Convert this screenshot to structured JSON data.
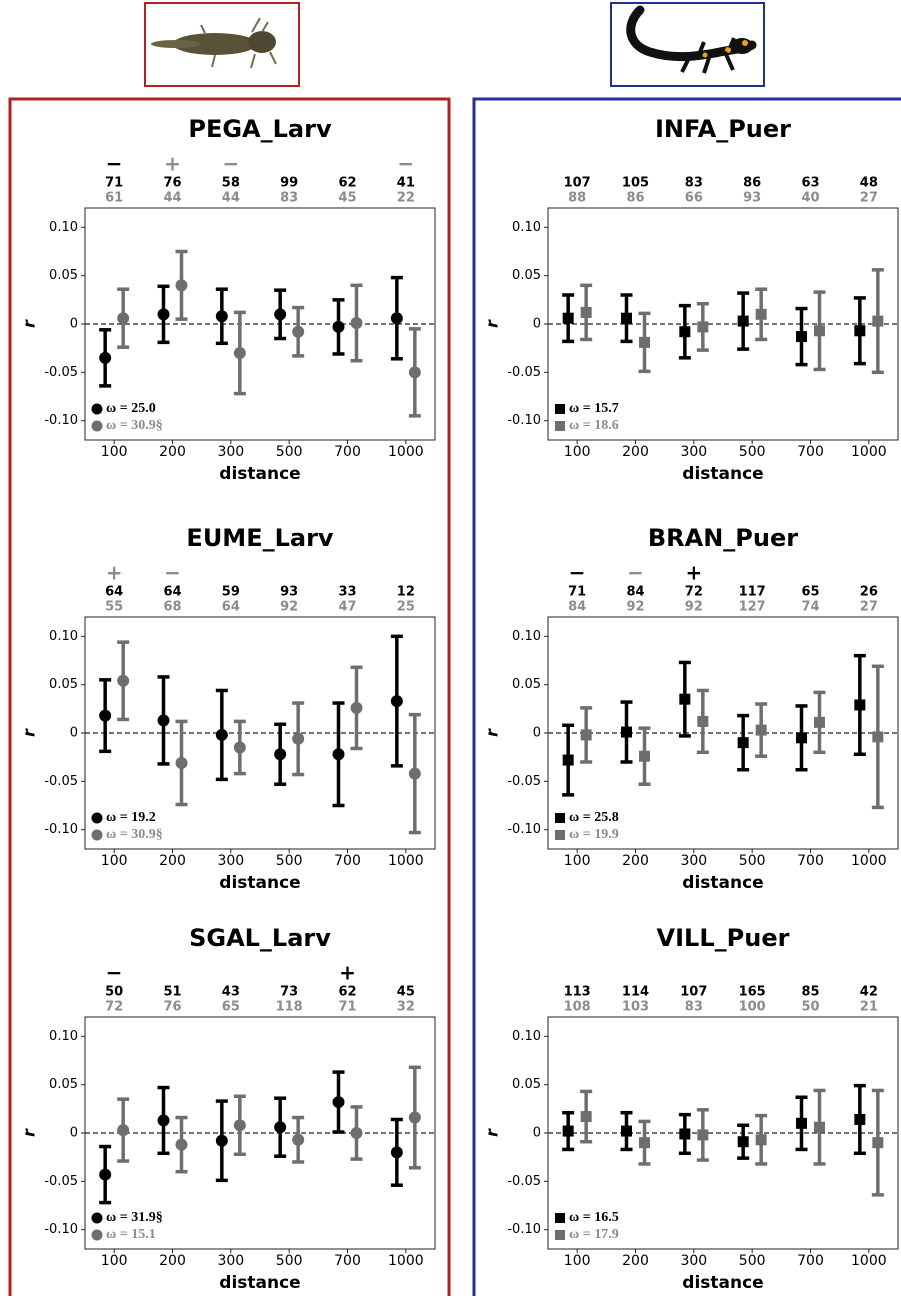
{
  "chart_data": [
    {
      "type": "errorbar",
      "title": "PEGA_Larv",
      "xlabel": "distance",
      "ylabel": "r",
      "categories": [
        "100",
        "200",
        "300",
        "500",
        "700",
        "1000"
      ],
      "ylim": [
        -0.12,
        0.12
      ],
      "yticks": [
        {
          "value": 0.1,
          "label": "0.10"
        },
        0.05,
        0,
        -0.05,
        {
          "value": -0.1,
          "label": "-0.10"
        }
      ],
      "series": [
        {
          "name": "ω = 25.0",
          "color": "#000000",
          "marker": "circle",
          "values": [
            -0.035,
            0.01,
            0.008,
            0.01,
            -0.003,
            0.006
          ],
          "errors": [
            0.029,
            0.029,
            0.028,
            0.025,
            0.028,
            0.042
          ],
          "n": [
            71,
            76,
            58,
            99,
            62,
            41
          ],
          "signs": [
            "−",
            null,
            null,
            null,
            null,
            null
          ]
        },
        {
          "name": "ω = 30.9§",
          "color": "#6e6e6e",
          "marker": "circle",
          "values": [
            0.006,
            0.04,
            -0.03,
            -0.008,
            0.001,
            -0.05
          ],
          "errors": [
            0.03,
            0.035,
            0.042,
            0.025,
            0.039,
            0.045
          ],
          "n": [
            61,
            44,
            44,
            83,
            45,
            22
          ],
          "signs": [
            null,
            "+",
            "−",
            null,
            null,
            "−"
          ]
        }
      ]
    },
    {
      "type": "errorbar",
      "title": "INFA_Puer",
      "xlabel": "distance",
      "ylabel": "r",
      "categories": [
        "100",
        "200",
        "300",
        "500",
        "700",
        "1000"
      ],
      "ylim": [
        -0.12,
        0.12
      ],
      "yticks": [
        {
          "value": 0.1,
          "label": "0.10"
        },
        0.05,
        0,
        -0.05,
        {
          "value": -0.1,
          "label": "-0.10"
        }
      ],
      "series": [
        {
          "name": "ω = 15.7",
          "color": "#000000",
          "marker": "square",
          "values": [
            0.006,
            0.006,
            -0.008,
            0.003,
            -0.013,
            -0.007
          ],
          "errors": [
            0.024,
            0.024,
            0.027,
            0.029,
            0.029,
            0.034
          ],
          "n": [
            107,
            105,
            83,
            86,
            63,
            48
          ],
          "signs": [
            null,
            null,
            null,
            null,
            null,
            null
          ]
        },
        {
          "name": "ω = 18.6",
          "color": "#6e6e6e",
          "marker": "square",
          "values": [
            0.012,
            -0.019,
            -0.003,
            0.01,
            -0.007,
            0.003
          ],
          "errors": [
            0.028,
            0.03,
            0.024,
            0.026,
            0.04,
            0.053
          ],
          "n": [
            88,
            86,
            66,
            93,
            40,
            27
          ],
          "signs": [
            null,
            null,
            null,
            null,
            null,
            null
          ]
        }
      ]
    },
    {
      "type": "errorbar",
      "title": "EUME_Larv",
      "xlabel": "distance",
      "ylabel": "r",
      "categories": [
        "100",
        "200",
        "300",
        "500",
        "700",
        "1000"
      ],
      "ylim": [
        -0.12,
        0.12
      ],
      "yticks": [
        {
          "value": 0.1,
          "label": "0.10"
        },
        0.05,
        0,
        -0.05,
        {
          "value": -0.1,
          "label": "-0.10"
        }
      ],
      "series": [
        {
          "name": "ω = 19.2",
          "color": "#000000",
          "marker": "circle",
          "values": [
            0.018,
            0.013,
            -0.002,
            -0.022,
            -0.022,
            0.033
          ],
          "errors": [
            0.037,
            0.045,
            0.046,
            0.031,
            0.053,
            0.067
          ],
          "n": [
            64,
            64,
            59,
            93,
            33,
            12
          ],
          "signs": [
            null,
            null,
            null,
            null,
            null,
            null
          ]
        },
        {
          "name": "ω = 30.9§",
          "color": "#6e6e6e",
          "marker": "circle",
          "values": [
            0.054,
            -0.031,
            -0.015,
            -0.006,
            0.026,
            -0.042
          ],
          "errors": [
            0.04,
            0.043,
            0.027,
            0.037,
            0.042,
            0.061
          ],
          "n": [
            55,
            68,
            64,
            92,
            47,
            25
          ],
          "signs": [
            "+",
            "−",
            null,
            null,
            null,
            null
          ]
        }
      ]
    },
    {
      "type": "errorbar",
      "title": "BRAN_Puer",
      "xlabel": "distance",
      "ylabel": "r",
      "categories": [
        "100",
        "200",
        "300",
        "500",
        "700",
        "1000"
      ],
      "ylim": [
        -0.12,
        0.12
      ],
      "yticks": [
        {
          "value": 0.1,
          "label": "0.10"
        },
        0.05,
        0,
        -0.05,
        {
          "value": -0.1,
          "label": "-0.10"
        }
      ],
      "series": [
        {
          "name": "ω = 25.8",
          "color": "#000000",
          "marker": "square",
          "values": [
            -0.028,
            0.001,
            0.035,
            -0.01,
            -0.005,
            0.029
          ],
          "errors": [
            0.036,
            0.031,
            0.038,
            0.028,
            0.033,
            0.051
          ],
          "n": [
            71,
            84,
            72,
            117,
            65,
            26
          ],
          "signs": [
            "−",
            null,
            "+",
            null,
            null,
            null
          ]
        },
        {
          "name": "ω = 19.9",
          "color": "#6e6e6e",
          "marker": "square",
          "values": [
            -0.002,
            -0.024,
            0.012,
            0.003,
            0.011,
            -0.004
          ],
          "errors": [
            0.028,
            0.029,
            0.032,
            0.027,
            0.031,
            0.073
          ],
          "n": [
            84,
            92,
            92,
            127,
            74,
            27
          ],
          "signs": [
            null,
            "−",
            null,
            null,
            null,
            null
          ]
        }
      ]
    },
    {
      "type": "errorbar",
      "title": "SGAL_Larv",
      "xlabel": "distance",
      "ylabel": "r",
      "categories": [
        "100",
        "200",
        "300",
        "500",
        "700",
        "1000"
      ],
      "ylim": [
        -0.12,
        0.12
      ],
      "yticks": [
        {
          "value": 0.1,
          "label": "0.10"
        },
        0.05,
        0,
        -0.05,
        {
          "value": -0.1,
          "label": "-0.10"
        }
      ],
      "series": [
        {
          "name": "ω = 31.9§",
          "color": "#000000",
          "marker": "circle",
          "values": [
            -0.043,
            0.013,
            -0.008,
            0.006,
            0.032,
            -0.02
          ],
          "errors": [
            0.029,
            0.034,
            0.041,
            0.03,
            0.031,
            0.034
          ],
          "n": [
            50,
            51,
            43,
            73,
            62,
            45
          ],
          "signs": [
            "−",
            null,
            null,
            null,
            "+",
            null
          ]
        },
        {
          "name": "ω = 15.1",
          "color": "#6e6e6e",
          "marker": "circle",
          "values": [
            0.003,
            -0.012,
            0.008,
            -0.007,
            0.0,
            0.016
          ],
          "errors": [
            0.032,
            0.028,
            0.03,
            0.023,
            0.027,
            0.052
          ],
          "n": [
            72,
            76,
            65,
            118,
            71,
            32
          ],
          "signs": [
            null,
            null,
            null,
            null,
            null,
            null
          ]
        }
      ]
    },
    {
      "type": "errorbar",
      "title": "VILL_Puer",
      "xlabel": "distance",
      "ylabel": "r",
      "categories": [
        "100",
        "200",
        "300",
        "500",
        "700",
        "1000"
      ],
      "ylim": [
        -0.12,
        0.12
      ],
      "yticks": [
        {
          "value": 0.1,
          "label": "0.10"
        },
        0.05,
        0,
        -0.05,
        {
          "value": -0.1,
          "label": "-0.10"
        }
      ],
      "series": [
        {
          "name": "ω = 16.5",
          "color": "#000000",
          "marker": "square",
          "values": [
            0.002,
            0.002,
            -0.001,
            -0.009,
            0.01,
            0.014
          ],
          "errors": [
            0.019,
            0.019,
            0.02,
            0.017,
            0.027,
            0.035
          ],
          "n": [
            113,
            114,
            107,
            165,
            85,
            42
          ],
          "signs": [
            null,
            null,
            null,
            null,
            null,
            null
          ]
        },
        {
          "name": "ω = 17.9",
          "color": "#6e6e6e",
          "marker": "square",
          "values": [
            0.017,
            -0.01,
            -0.002,
            -0.007,
            0.006,
            -0.01
          ],
          "errors": [
            0.026,
            0.022,
            0.026,
            0.025,
            0.038,
            0.054
          ],
          "n": [
            108,
            103,
            83,
            100,
            50,
            21
          ],
          "signs": [
            null,
            null,
            null,
            null,
            null,
            null
          ]
        }
      ]
    }
  ]
}
